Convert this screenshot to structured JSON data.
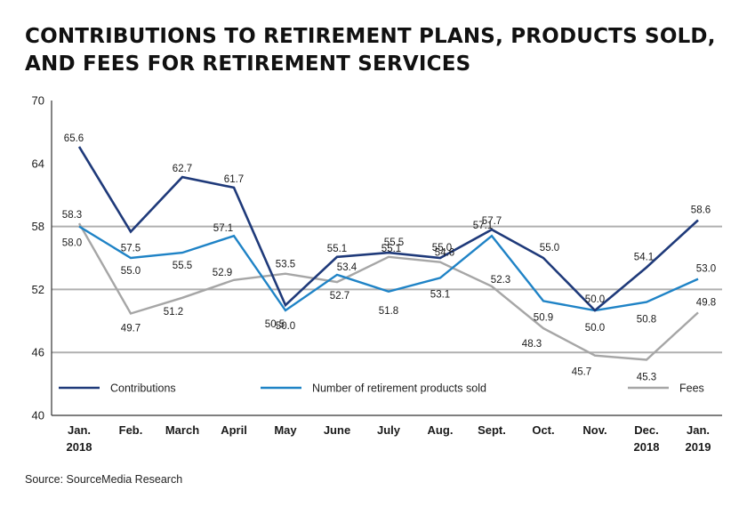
{
  "title": {
    "line1": "CONTRIBUTIONS TO RETIREMENT PLANS, PRODUCTS SOLD,",
    "line2": "AND FEES FOR RETIREMENT SERVICES"
  },
  "source": "Source: SourceMedia Research",
  "colors": {
    "contributions": "#1f3a7a",
    "products": "#1f83c6",
    "fees": "#a6a6a6",
    "gridline": "#b0b0b0",
    "axis": "#333333"
  },
  "chart_data": {
    "type": "line",
    "title": "CONTRIBUTIONS TO RETIREMENT PLANS, PRODUCTS SOLD, AND FEES FOR RETIREMENT SERVICES",
    "xlabel": "",
    "ylabel": "",
    "ylim": [
      40,
      70
    ],
    "yticks": [
      40,
      46,
      52,
      58,
      64,
      70
    ],
    "ytick_labels": [
      "40",
      "46",
      "52",
      "58",
      "64",
      "70"
    ],
    "gridlines_at": [
      46,
      52,
      58
    ],
    "categories": [
      [
        "Jan.",
        "2018"
      ],
      [
        "Feb."
      ],
      [
        "March"
      ],
      [
        "April"
      ],
      [
        "May"
      ],
      [
        "June"
      ],
      [
        "July"
      ],
      [
        "Aug."
      ],
      [
        "Sept."
      ],
      [
        "Oct."
      ],
      [
        "Nov."
      ],
      [
        "Dec.",
        "2018"
      ],
      [
        "Jan.",
        "2019"
      ]
    ],
    "series": [
      {
        "name": "Contributions",
        "key": "contributions",
        "values": [
          65.6,
          57.5,
          62.7,
          61.7,
          50.5,
          55.1,
          55.5,
          55.0,
          57.7,
          55.0,
          50.0,
          54.1,
          58.6
        ],
        "labels": [
          "65.6",
          "57.5",
          "62.7",
          "61.7",
          "50.5",
          "55.1",
          "55.5",
          "55.0",
          "57.7",
          "55.0",
          "50.0",
          "54.1",
          "58.6"
        ]
      },
      {
        "name": "Number of retirement products sold",
        "key": "products",
        "values": [
          58.0,
          55.0,
          55.5,
          57.1,
          50.0,
          53.4,
          51.8,
          53.1,
          57.1,
          50.9,
          50.0,
          50.8,
          53.0
        ],
        "labels": [
          "58.0",
          "55.0",
          "55.5",
          "57.1",
          "50.0",
          "53.4",
          "51.8",
          "53.1",
          "57.1",
          "50.9",
          "50.0",
          "50.8",
          "53.0"
        ]
      },
      {
        "name": "Fees",
        "key": "fees",
        "values": [
          58.3,
          49.7,
          51.2,
          52.9,
          53.5,
          52.7,
          55.1,
          54.6,
          52.3,
          48.3,
          45.7,
          45.3,
          49.8
        ],
        "labels": [
          "58.3",
          "49.7",
          "51.2",
          "52.9",
          "53.5",
          "52.7",
          "55.1",
          "54.6",
          "52.3",
          "48.3",
          "45.7",
          "45.3",
          "49.8"
        ]
      }
    ],
    "legend": [
      {
        "name": "Contributions",
        "key": "contributions"
      },
      {
        "name": "Number of retirement products sold",
        "key": "products"
      },
      {
        "name": "Fees",
        "key": "fees"
      }
    ],
    "legend_position": "bottom-inside"
  }
}
